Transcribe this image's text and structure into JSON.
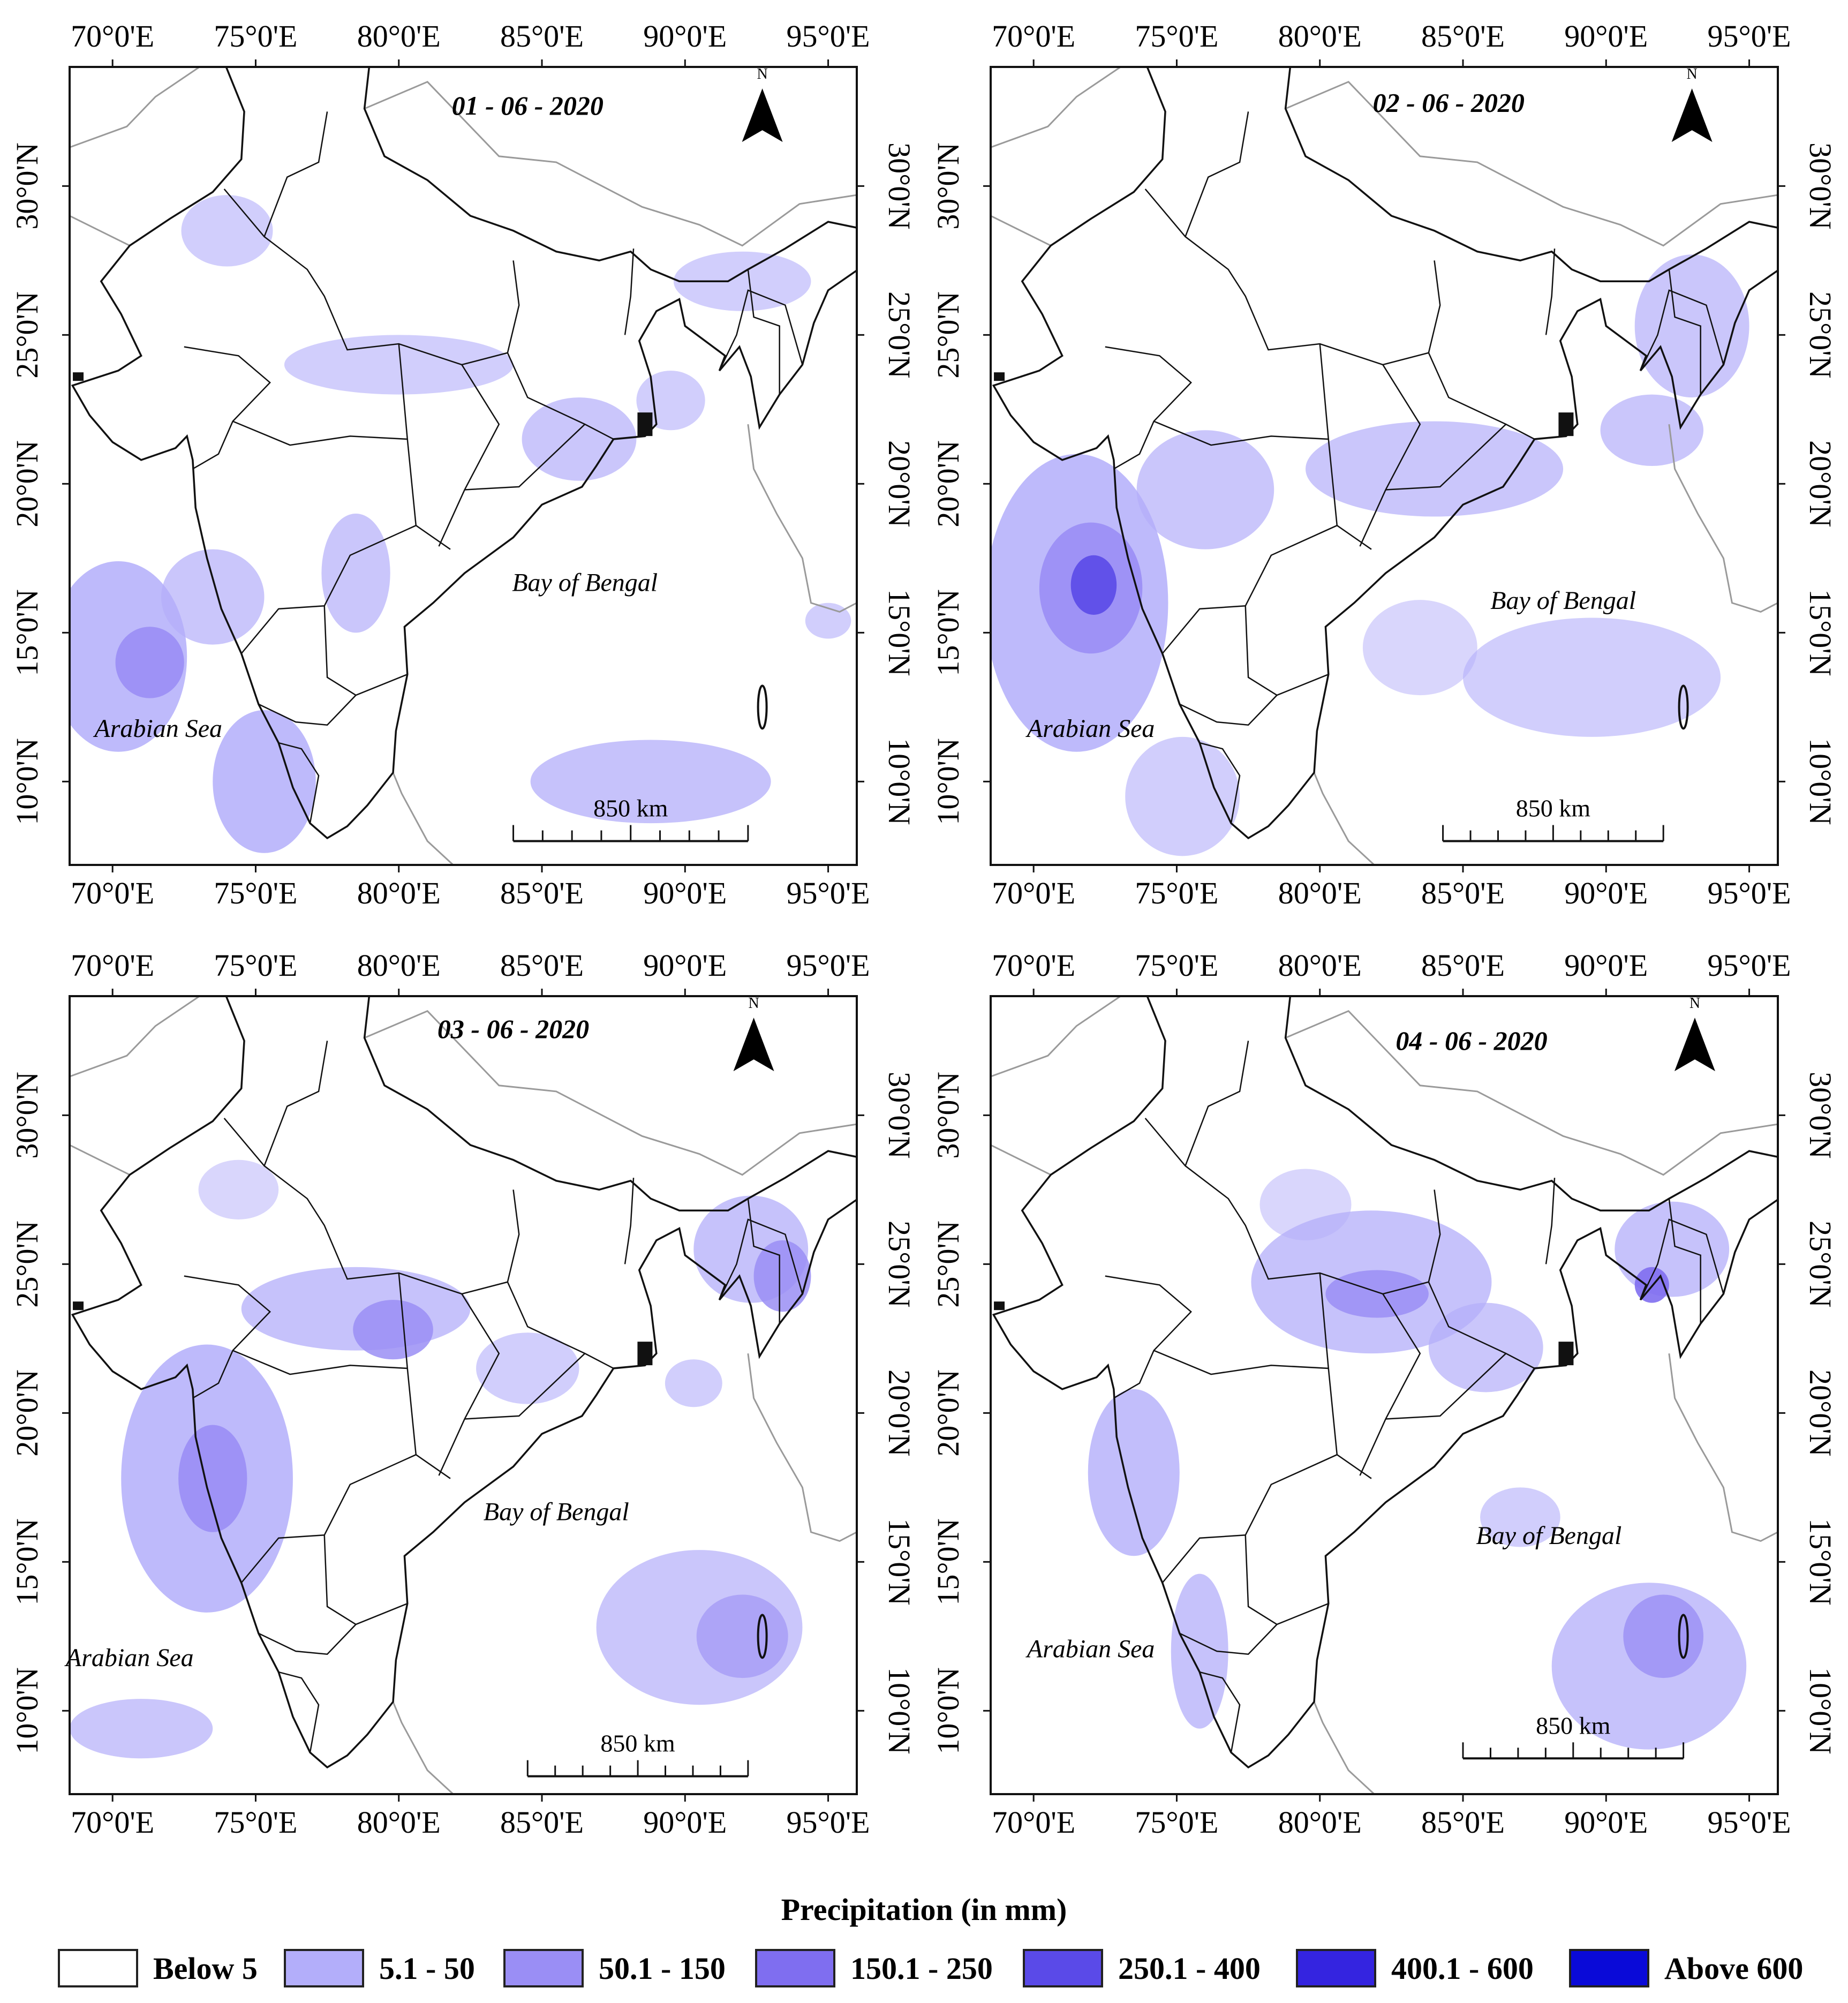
{
  "panels": [
    {
      "id": "p1",
      "date": "01 - 06 - 2020",
      "bay_label": "Bay of Bengal",
      "sea_label": "Arabian Sea",
      "scale_label": "850 km",
      "north_label": "N",
      "top_lon_ticks": [
        "70°0'E",
        "75°0'E",
        "80°0'E",
        "85°0'E",
        "90°0'E",
        "95°0'E"
      ],
      "bottom_lon_ticks": [
        "70°0'E",
        "75°0'E",
        "80°0'E",
        "85°0'E",
        "90°0'E",
        "95°0'E"
      ],
      "lat_ticks": [
        "30°0'N",
        "25°0'N",
        "20°0'N",
        "15°0'N",
        "10°0'N"
      ]
    },
    {
      "id": "p2",
      "date": "02 - 06 - 2020",
      "bay_label": "Bay of Bengal",
      "sea_label": "Arabian Sea",
      "scale_label": "850 km",
      "north_label": "N",
      "top_lon_ticks": [
        "70°0'E",
        "75°0'E",
        "80°0'E",
        "85°0'E",
        "90°0'E",
        "95°0'E"
      ],
      "bottom_lon_ticks": [
        "70°0'E",
        "75°0'E",
        "80°0'E",
        "85°0'E",
        "90°0'E",
        "95°0'E"
      ],
      "lat_ticks": [
        "30°0'N",
        "25°0'N",
        "20°0'N",
        "15°0'N",
        "10°0'N"
      ]
    },
    {
      "id": "p3",
      "date": "03 - 06 - 2020",
      "bay_label": "Bay of Bengal",
      "sea_label": "Arabian Sea",
      "scale_label": "850 km",
      "north_label": "N",
      "top_lon_ticks": [
        "70°0'E",
        "75°0'E",
        "80°0'E",
        "85°0'E",
        "90°0'E",
        "95°0'E"
      ],
      "bottom_lon_ticks": [
        "70°0'E",
        "75°0'E",
        "80°0'E",
        "85°0'E",
        "90°0'E",
        "95°0'E"
      ],
      "lat_ticks": [
        "30°0'N",
        "25°0'N",
        "20°0'N",
        "15°0'N",
        "10°0'N"
      ]
    },
    {
      "id": "p4",
      "date": "04 - 06 - 2020",
      "bay_label": "Bay of Bengal",
      "sea_label": "Arabian Sea",
      "scale_label": "850 km",
      "north_label": "N",
      "top_lon_ticks": [
        "70°0'E",
        "75°0'E",
        "80°0'E",
        "85°0'E",
        "90°0'E",
        "95°0'E"
      ],
      "bottom_lon_ticks": [
        "70°0'E",
        "75°0'E",
        "80°0'E",
        "85°0'E",
        "90°0'E",
        "95°0'E"
      ],
      "lat_ticks": [
        "30°0'N",
        "25°0'N",
        "20°0'N",
        "15°0'N",
        "10°0'N"
      ]
    }
  ],
  "legend": {
    "title": "Precipitation (in mm)",
    "items": [
      {
        "label": "Below 5",
        "color": "#ffffff"
      },
      {
        "label": "5.1 - 50",
        "color": "#b3aefa"
      },
      {
        "label": "50.1 - 150",
        "color": "#9a8ef5"
      },
      {
        "label": "150.1 - 250",
        "color": "#7f6ef0"
      },
      {
        "label": "250.1 - 400",
        "color": "#5a4ae8"
      },
      {
        "label": "400.1 - 600",
        "color": "#3424e0"
      },
      {
        "label": "Above 600",
        "color": "#0a0ad8"
      }
    ]
  }
}
